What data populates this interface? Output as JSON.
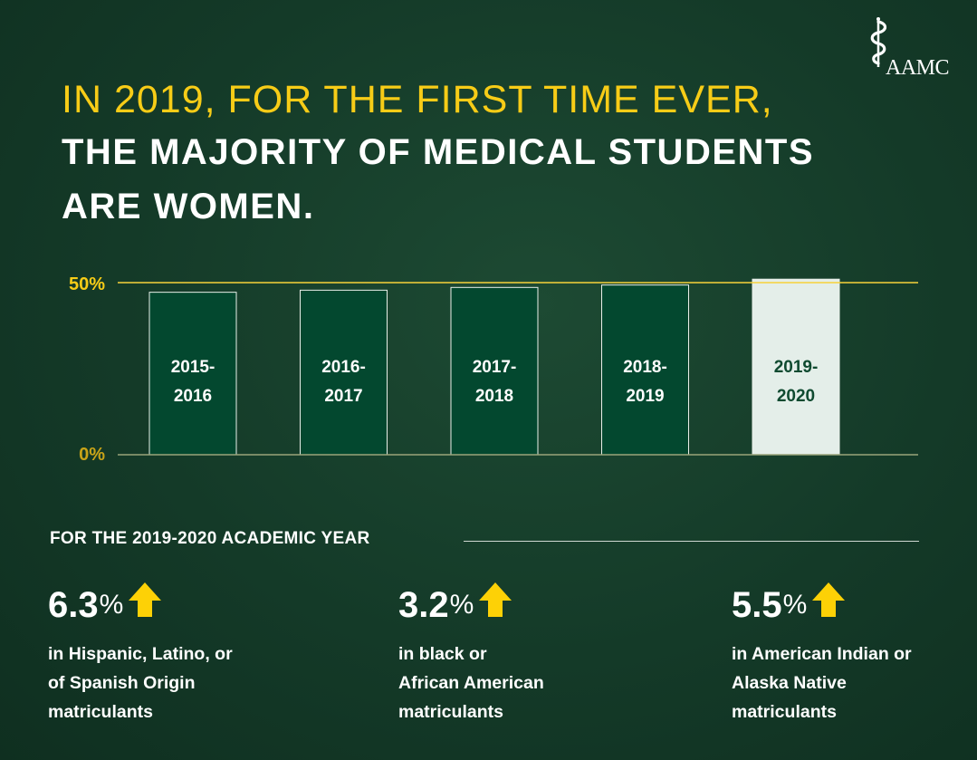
{
  "logo": {
    "text": "AAMC",
    "icon": "caduceus-icon"
  },
  "headline": {
    "line1": "IN 2019, FOR THE FIRST TIME EVER,",
    "line2": "THE MAJORITY OF MEDICAL STUDENTS",
    "line3": "ARE WOMEN."
  },
  "chart_data": {
    "type": "bar",
    "categories": [
      "2015-2016",
      "2016-2017",
      "2017-2018",
      "2018-2019",
      "2019-2020"
    ],
    "category_lines": [
      [
        "2015-",
        "2016"
      ],
      [
        "2016-",
        "2017"
      ],
      [
        "2017-",
        "2018"
      ],
      [
        "2018-",
        "2019"
      ],
      [
        "2019-",
        "2020"
      ]
    ],
    "values": [
      47.2,
      47.8,
      48.6,
      49.3,
      51.0
    ],
    "ylim": [
      0,
      50
    ],
    "y_tick_labels": [
      "0%",
      "50%"
    ],
    "title": "",
    "xlabel": "",
    "ylabel": "",
    "bar_colors": [
      "#03482f",
      "#03482f",
      "#03482f",
      "#03482f",
      "#e4eee9"
    ],
    "label_colors": [
      "#ffffff",
      "#ffffff",
      "#ffffff",
      "#ffffff",
      "#0f4a30"
    ],
    "reference_line_color": "#f7d23a",
    "baseline_color": "#9aa47a"
  },
  "section": {
    "title": "FOR THE 2019-2020 ACADEMIC YEAR"
  },
  "stats": [
    {
      "value": "6.3",
      "unit": "%",
      "icon": "up-arrow-icon",
      "description": "in Hispanic, Latino, or\nof Spanish Origin\nmatriculants"
    },
    {
      "value": "3.2",
      "unit": "%",
      "icon": "up-arrow-icon",
      "description": "in black or\nAfrican American\nmatriculants"
    },
    {
      "value": "5.5",
      "unit": "%",
      "icon": "up-arrow-icon",
      "description": "in American Indian or\nAlaska Native\nmatriculants"
    }
  ],
  "colors": {
    "accent": "#f7cc17",
    "arrow": "#fdd106"
  }
}
